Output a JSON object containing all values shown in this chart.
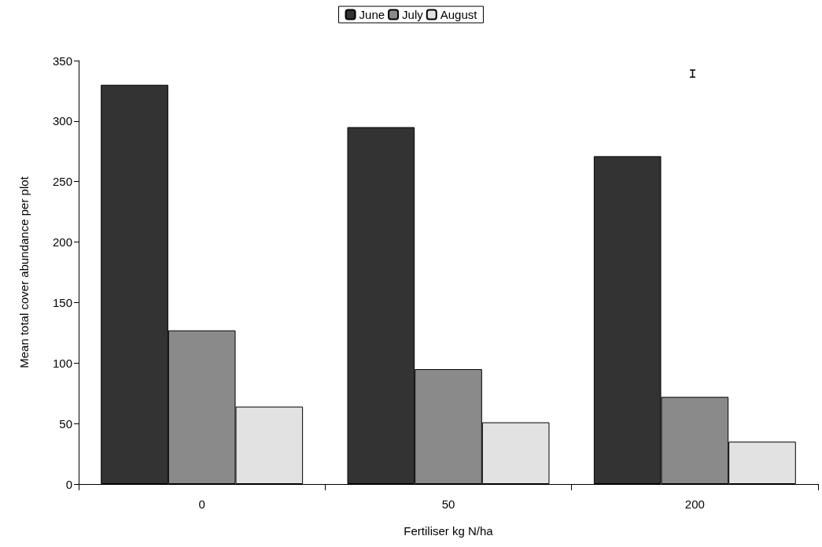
{
  "chart_data": {
    "type": "bar",
    "xlabel": "Fertiliser kg N/ha",
    "ylabel": "Mean total cover abundance per plot",
    "categories": [
      "0",
      "50",
      "200"
    ],
    "series": [
      {
        "name": "June",
        "color": "#333333",
        "values": [
          330,
          295,
          271
        ]
      },
      {
        "name": "July",
        "color": "#8a8a8a",
        "values": [
          127,
          95,
          72
        ]
      },
      {
        "name": "August",
        "color": "#e2e2e2",
        "values": [
          64,
          51,
          35
        ]
      }
    ],
    "ylim": [
      0,
      350
    ],
    "yticks": [
      0,
      50,
      100,
      150,
      200,
      250,
      300,
      350
    ],
    "grid": false,
    "legend": "top"
  }
}
